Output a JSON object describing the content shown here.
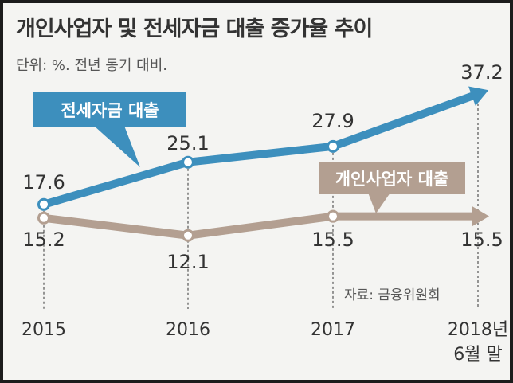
{
  "title": "개인사업자 및 전세자금 대출 증가율 추이",
  "unit_note": "단위: %. 전년 동기 대비.",
  "source": "자료: 금융위원회",
  "colors": {
    "jeonse": "#3d8fbd",
    "business": "#b39f91",
    "background": "#f4f4f2",
    "text": "#333333"
  },
  "chart_data": {
    "type": "line",
    "categories": [
      "2015",
      "2016",
      "2017",
      "2018년 6월 말"
    ],
    "category_lines": [
      [
        "2015"
      ],
      [
        "2016"
      ],
      [
        "2017"
      ],
      [
        "2018년",
        "6월 말"
      ]
    ],
    "series": [
      {
        "name": "전세자금 대출",
        "values": [
          17.6,
          25.1,
          27.9,
          37.2
        ]
      },
      {
        "name": "개인사업자 대출",
        "values": [
          15.2,
          12.1,
          15.5,
          15.5
        ]
      }
    ],
    "labels": [
      [
        "17.6",
        "25.1",
        "27.9",
        "37.2"
      ],
      [
        "15.2",
        "12.1",
        "15.5",
        "15.5"
      ]
    ],
    "grid": "dashed vertical lines at each year",
    "legend": "callout tags on the lines"
  }
}
